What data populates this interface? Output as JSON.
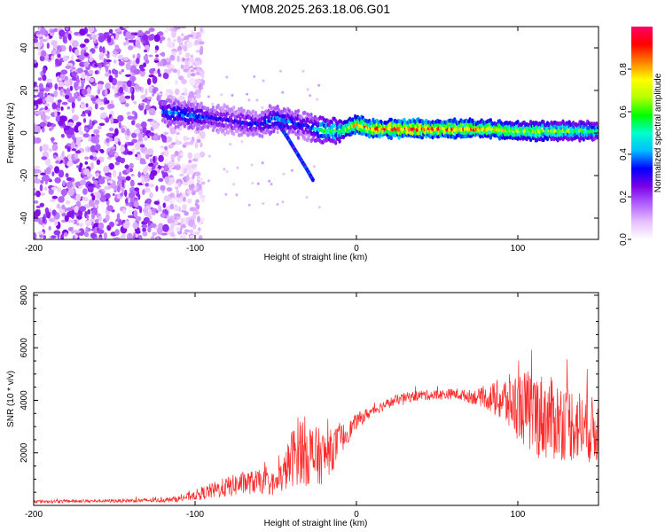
{
  "chart_data": [
    {
      "type": "heatmap",
      "title": "YM08.2025.263.18.06.G01",
      "xlabel": "Height of straight line (km)",
      "ylabel": "Frequency (Hz)",
      "xlim": [
        -200,
        150
      ],
      "ylim": [
        -50,
        50
      ],
      "xticks": [
        -200,
        -100,
        0,
        100
      ],
      "yticks": [
        -40,
        -20,
        0,
        20,
        40
      ],
      "colorbar": {
        "label": "Normalized spectral amplitude",
        "range": [
          0,
          1
        ],
        "ticks": [
          "0.0",
          "0.2",
          "0.4",
          "0.6",
          "0.8"
        ],
        "colors": [
          "#ffffff",
          "#e6bfff",
          "#b060ff",
          "#7a00e6",
          "#0000ff",
          "#00bfff",
          "#00ffcc",
          "#00ff00",
          "#b4ff00",
          "#ffff00",
          "#ff8000",
          "#ff0000",
          "#ff0066"
        ]
      },
      "track": {
        "height_km": [
          -120,
          -110,
          -100,
          -90,
          -80,
          -70,
          -60,
          -50,
          -40,
          -30,
          -20,
          -10,
          0,
          10,
          20,
          40,
          60,
          80,
          100,
          120,
          150
        ],
        "frequency_hz": [
          10,
          9,
          8,
          7,
          6,
          5,
          4,
          7,
          5,
          3,
          1,
          1,
          4,
          2,
          2,
          2,
          2,
          2,
          1,
          1,
          1
        ],
        "amplitude": [
          0.4,
          0.45,
          0.4,
          0.35,
          0.3,
          0.35,
          0.35,
          0.45,
          0.4,
          0.35,
          0.6,
          0.65,
          0.85,
          0.9,
          0.95,
          0.95,
          0.9,
          0.85,
          0.75,
          0.7,
          0.6
        ]
      },
      "secondary_branch": {
        "height_km": [
          -48,
          -42,
          -38,
          -34,
          -30,
          -27
        ],
        "frequency_hz": [
          4,
          -3,
          -8,
          -13,
          -18,
          -22
        ]
      }
    },
    {
      "type": "line",
      "title": "",
      "xlabel": "Height of straight line (km)",
      "ylabel": "SNR (10 * v/v)",
      "xlim": [
        -200,
        150
      ],
      "ylim": [
        0,
        8100
      ],
      "xticks": [
        -200,
        -100,
        0,
        100
      ],
      "yticks": [
        2000,
        4000,
        6000,
        8000
      ],
      "color": "#ff2a2a",
      "series": [
        {
          "name": "SNR",
          "x": [
            -200,
            -180,
            -160,
            -140,
            -120,
            -110,
            -100,
            -90,
            -80,
            -70,
            -60,
            -50,
            -45,
            -40,
            -35,
            -30,
            -25,
            -20,
            -15,
            -10,
            -5,
            0,
            10,
            20,
            30,
            40,
            50,
            60,
            70,
            80,
            90,
            100,
            110,
            120,
            130,
            140,
            150
          ],
          "y": [
            150,
            160,
            170,
            180,
            200,
            250,
            400,
            550,
            700,
            850,
            900,
            800,
            1200,
            1800,
            2200,
            2000,
            1800,
            1900,
            2100,
            2500,
            2800,
            3200,
            3600,
            3900,
            4100,
            4200,
            4200,
            4250,
            4150,
            4100,
            4000,
            3800,
            3500,
            3300,
            3200,
            3000,
            2800
          ],
          "spread": [
            60,
            60,
            60,
            70,
            80,
            120,
            200,
            300,
            400,
            450,
            450,
            450,
            700,
            1100,
            1400,
            1300,
            1200,
            1000,
            800,
            600,
            400,
            300,
            200,
            200,
            200,
            200,
            200,
            200,
            250,
            400,
            900,
            1300,
            1700,
            1600,
            1500,
            1400,
            1200
          ]
        }
      ]
    }
  ]
}
